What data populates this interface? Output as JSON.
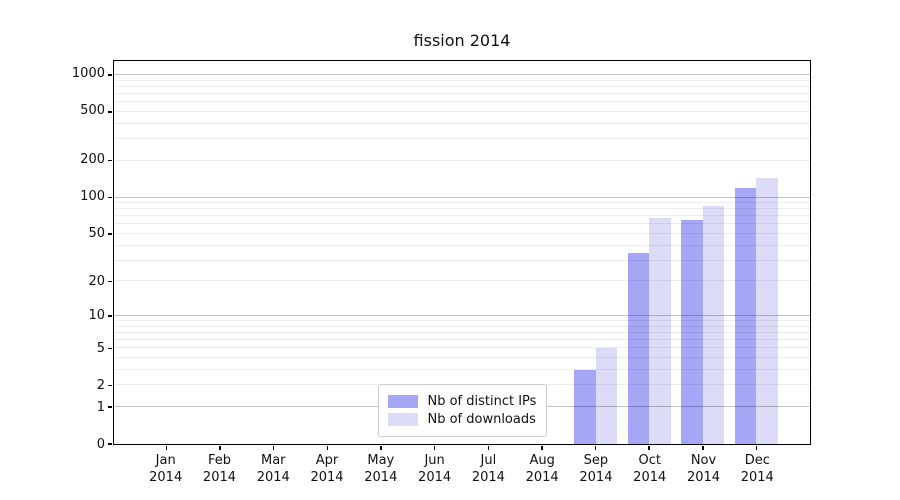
{
  "chart_data": {
    "type": "bar",
    "title": "fission 2014",
    "y_scale": "log10(1 + value)",
    "ylim": [
      0,
      1300
    ],
    "grid": true,
    "legend_position": "bottom-center inside plot",
    "categories": [
      "Jan 2014",
      "Feb 2014",
      "Mar 2014",
      "Apr 2014",
      "May 2014",
      "Jun 2014",
      "Jul 2014",
      "Aug 2014",
      "Sep 2014",
      "Oct 2014",
      "Nov 2014",
      "Dec 2014"
    ],
    "x_tick_months": [
      "Jan",
      "Feb",
      "Mar",
      "Apr",
      "May",
      "Jun",
      "Jul",
      "Aug",
      "Sep",
      "Oct",
      "Nov",
      "Dec"
    ],
    "x_tick_year": "2014",
    "y_ticks": [
      0,
      1,
      2,
      5,
      10,
      20,
      50,
      100,
      200,
      500,
      1000
    ],
    "y_major_gridlines": [
      1,
      10,
      100,
      1000
    ],
    "y_minor_gridlines": [
      2,
      3,
      4,
      5,
      6,
      7,
      8,
      9,
      20,
      30,
      40,
      50,
      60,
      70,
      80,
      90,
      200,
      300,
      400,
      500,
      600,
      700,
      800,
      900
    ],
    "series": [
      {
        "name": "Nb of distinct IPs",
        "color": "#a6a6f6",
        "values": [
          0,
          0,
          0,
          0,
          0,
          0,
          0,
          0,
          3,
          35,
          65,
          120
        ]
      },
      {
        "name": "Nb of downloads",
        "color": "#dcdcf8",
        "values": [
          0,
          0,
          0,
          0,
          0,
          0,
          0,
          0,
          5,
          68,
          85,
          145
        ]
      }
    ]
  }
}
